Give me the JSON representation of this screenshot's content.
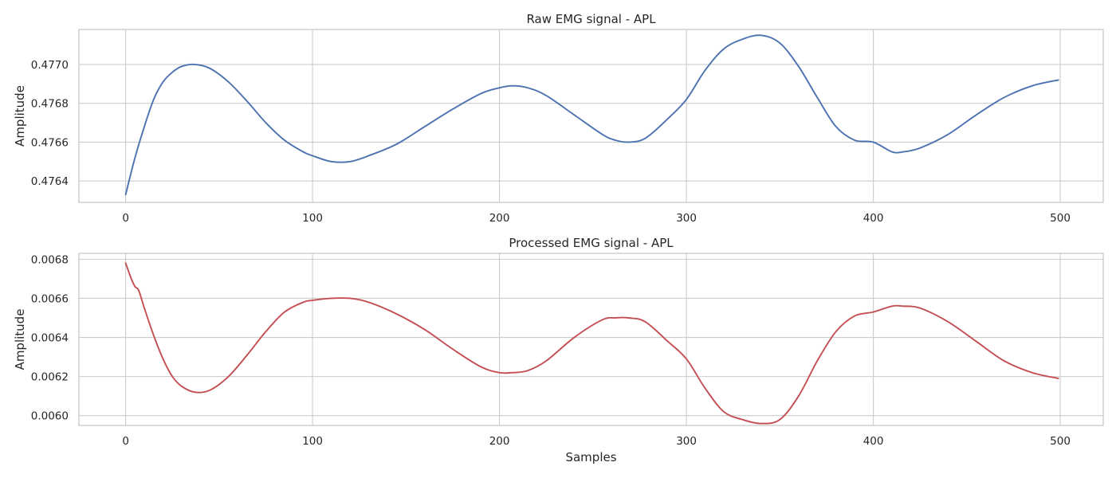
{
  "chart_data": [
    {
      "type": "line",
      "title": "Raw EMG signal - APL",
      "xlabel": "",
      "ylabel": "Amplitude",
      "xlim": [
        -25,
        523
      ],
      "ylim": [
        0.47629,
        0.47718
      ],
      "xticks": [
        0,
        100,
        200,
        300,
        400,
        500
      ],
      "xtick_labels": [
        "0",
        "100",
        "200",
        "300",
        "400",
        "500"
      ],
      "yticks": [
        0.4764,
        0.4766,
        0.4768,
        0.477
      ],
      "ytick_labels": [
        "0.4764",
        "0.4766",
        "0.4768",
        "0.4770"
      ],
      "grid": true,
      "color": "#4c72b0",
      "series": [
        {
          "x": [
            0,
            5,
            10,
            15,
            20,
            25,
            30,
            37,
            45,
            55,
            65,
            75,
            85,
            95,
            100,
            110,
            120,
            130,
            145,
            160,
            175,
            190,
            200,
            207,
            215,
            225,
            240,
            255,
            262,
            269,
            278,
            290,
            300,
            310,
            320,
            330,
            340,
            350,
            360,
            370,
            380,
            390,
            400,
            410,
            416,
            425,
            440,
            455,
            470,
            485,
            499
          ],
          "y": [
            0.47633,
            0.47652,
            0.47668,
            0.47682,
            0.47691,
            0.47696,
            0.47699,
            0.477,
            0.47698,
            0.47691,
            0.47681,
            0.4767,
            0.47661,
            0.47655,
            0.47653,
            0.4765,
            0.4765,
            0.47653,
            0.47659,
            0.47668,
            0.47677,
            0.47685,
            0.47688,
            0.47689,
            0.47688,
            0.47684,
            0.47674,
            0.47664,
            0.47661,
            0.4766,
            0.47662,
            0.47672,
            0.47682,
            0.47697,
            0.47708,
            0.47713,
            0.47715,
            0.47711,
            0.47699,
            0.47683,
            0.47668,
            0.47661,
            0.4766,
            0.47655,
            0.47655,
            0.47657,
            0.47664,
            0.47674,
            0.47683,
            0.47689,
            0.47692
          ]
        }
      ]
    },
    {
      "type": "line",
      "title": "Processed EMG signal - APL",
      "xlabel": "Samples",
      "ylabel": "Amplitude",
      "xlim": [
        -25,
        523
      ],
      "ylim": [
        0.00595,
        0.00683
      ],
      "xticks": [
        0,
        100,
        200,
        300,
        400,
        500
      ],
      "xtick_labels": [
        "0",
        "100",
        "200",
        "300",
        "400",
        "500"
      ],
      "yticks": [
        0.006,
        0.0062,
        0.0064,
        0.0066,
        0.0068
      ],
      "ytick_labels": [
        "0.0060",
        "0.0062",
        "0.0064",
        "0.0066",
        "0.0068"
      ],
      "grid": true,
      "color": "#c44e52",
      "series": [
        {
          "x": [
            0,
            3,
            5,
            7,
            10,
            15,
            20,
            25,
            30,
            37,
            45,
            55,
            65,
            75,
            85,
            95,
            100,
            110,
            120,
            130,
            145,
            160,
            175,
            190,
            200,
            207,
            215,
            225,
            240,
            255,
            262,
            269,
            278,
            290,
            300,
            310,
            320,
            330,
            340,
            350,
            360,
            370,
            380,
            390,
            400,
            410,
            416,
            425,
            440,
            455,
            470,
            485,
            499
          ],
          "y": [
            0.00678,
            0.0067,
            0.00666,
            0.00664,
            0.00655,
            0.00641,
            0.00629,
            0.0062,
            0.00615,
            0.00612,
            0.00613,
            0.0062,
            0.00631,
            0.00643,
            0.00653,
            0.00658,
            0.00659,
            0.0066,
            0.0066,
            0.00658,
            0.00652,
            0.00644,
            0.00634,
            0.00625,
            0.00622,
            0.00622,
            0.00623,
            0.00628,
            0.0064,
            0.00649,
            0.0065,
            0.0065,
            0.00648,
            0.00638,
            0.00629,
            0.00614,
            0.00602,
            0.00598,
            0.00596,
            0.00598,
            0.0061,
            0.00628,
            0.00643,
            0.00651,
            0.00653,
            0.00656,
            0.00656,
            0.00655,
            0.00648,
            0.00638,
            0.00628,
            0.00622,
            0.00619
          ]
        }
      ]
    }
  ]
}
